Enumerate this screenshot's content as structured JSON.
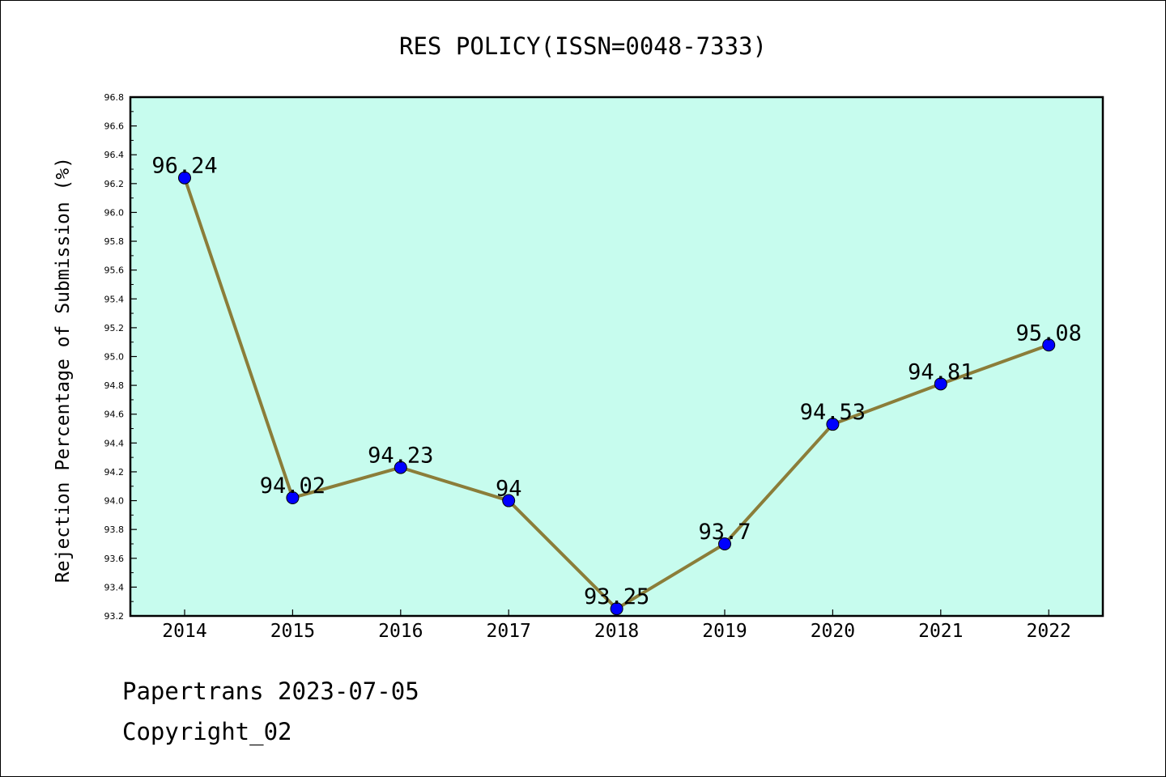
{
  "chart_data": {
    "type": "line",
    "title": "RES POLICY(ISSN=0048-7333)",
    "ylabel": "Rejection Percentage of Submission (%)",
    "xlabel": "",
    "categories": [
      "2014",
      "2015",
      "2016",
      "2017",
      "2018",
      "2019",
      "2020",
      "2021",
      "2022"
    ],
    "values": [
      96.24,
      94.02,
      94.23,
      94,
      93.25,
      93.7,
      94.53,
      94.81,
      95.08
    ],
    "data_labels": [
      "96.24",
      "94.02",
      "94.23",
      "94",
      "93.25",
      "93.7",
      "94.53",
      "94.81",
      "95.08"
    ],
    "ylim": [
      93.2,
      96.8
    ],
    "yticks": [
      "93.2",
      "93.4",
      "93.6",
      "93.8",
      "94.0",
      "94.2",
      "94.4",
      "94.6",
      "94.8",
      "95.0",
      "95.2",
      "95.4",
      "95.6",
      "95.8",
      "96.0",
      "96.2",
      "96.4",
      "96.6",
      "96.8"
    ],
    "grid": false,
    "legend": "none"
  },
  "colors": {
    "plot_background": "#c7fcee",
    "line": "#8b7d39",
    "marker": "#0000ff"
  },
  "footer": {
    "line1": "Papertrans 2023-07-05",
    "line2": "Copyright_02"
  }
}
